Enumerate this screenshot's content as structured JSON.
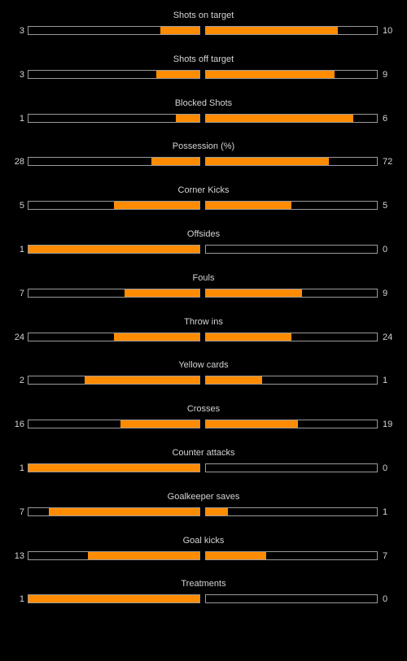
{
  "colors": {
    "background": "#000000",
    "bar_fill": "#ff8c00",
    "bar_border": "#9a9a9a",
    "text": "#d4d4d4"
  },
  "stats": [
    {
      "label": "Shots on target",
      "home": "3",
      "away": "10",
      "home_fill": 0.23,
      "away_fill": 0.77
    },
    {
      "label": "Shots off target",
      "home": "3",
      "away": "9",
      "home_fill": 0.25,
      "away_fill": 0.75
    },
    {
      "label": "Blocked Shots",
      "home": "1",
      "away": "6",
      "home_fill": 0.14,
      "away_fill": 0.86
    },
    {
      "label": "Possession (%)",
      "home": "28",
      "away": "72",
      "home_fill": 0.28,
      "away_fill": 0.72
    },
    {
      "label": "Corner Kicks",
      "home": "5",
      "away": "5",
      "home_fill": 0.5,
      "away_fill": 0.5
    },
    {
      "label": "Offsides",
      "home": "1",
      "away": "0",
      "home_fill": 1.0,
      "away_fill": 0.0
    },
    {
      "label": "Fouls",
      "home": "7",
      "away": "9",
      "home_fill": 0.44,
      "away_fill": 0.56
    },
    {
      "label": "Throw ins",
      "home": "24",
      "away": "24",
      "home_fill": 0.5,
      "away_fill": 0.5
    },
    {
      "label": "Yellow cards",
      "home": "2",
      "away": "1",
      "home_fill": 0.67,
      "away_fill": 0.33
    },
    {
      "label": "Crosses",
      "home": "16",
      "away": "19",
      "home_fill": 0.46,
      "away_fill": 0.54
    },
    {
      "label": "Counter attacks",
      "home": "1",
      "away": "0",
      "home_fill": 1.0,
      "away_fill": 0.0
    },
    {
      "label": "Goalkeeper saves",
      "home": "7",
      "away": "1",
      "home_fill": 0.88,
      "away_fill": 0.13
    },
    {
      "label": "Goal kicks",
      "home": "13",
      "away": "7",
      "home_fill": 0.65,
      "away_fill": 0.35
    },
    {
      "label": "Treatments",
      "home": "1",
      "away": "0",
      "home_fill": 1.0,
      "away_fill": 0.0
    }
  ]
}
